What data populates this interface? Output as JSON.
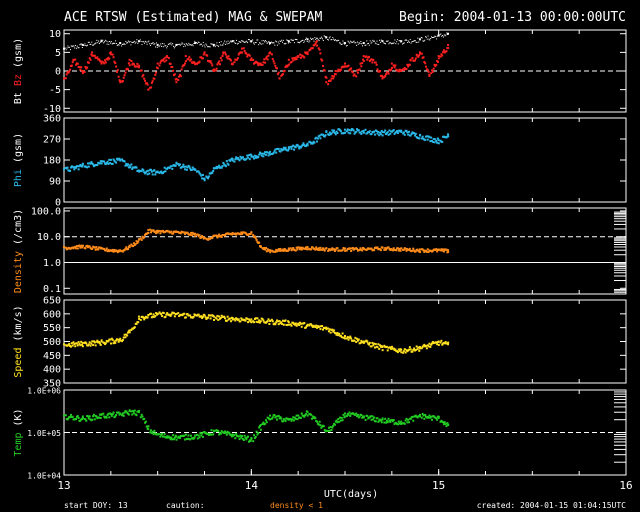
{
  "header": {
    "title": "ACE RTSW (Estimated) MAG & SWEPAM",
    "begin": "Begin: 2004-01-13 00:00:00UTC"
  },
  "footer": {
    "start_doy_label": "start DOY:",
    "start_doy_value": "13",
    "caution_label": "caution:",
    "caution_value": "density < 1",
    "created": "created: 2004-01-15 01:04:15UTC"
  },
  "colors": {
    "background": "#000000",
    "axes": "#ffffff",
    "bt": "#ffffff",
    "bz": "#ff2020",
    "phi": "#2ab8e8",
    "density": "#ff8c1a",
    "speed": "#ffe020",
    "temp": "#22cc22"
  },
  "chart_data": {
    "type": "scatter",
    "xaxis": {
      "label": "UTC(days)",
      "range": [
        13,
        16
      ],
      "ticks": [
        13,
        14,
        15,
        16
      ]
    },
    "panels": [
      {
        "id": "mag",
        "ylabel_parts": [
          {
            "text": "Bt",
            "color": "#ffffff"
          },
          {
            "text": "Bz",
            "color": "#ff2020"
          },
          {
            "text": "(gsm)",
            "color": "#ffffff"
          }
        ],
        "ylim": [
          -11,
          11
        ],
        "ticks": [
          10,
          5,
          0,
          -5,
          -10
        ],
        "log": false,
        "dashed": [
          0
        ],
        "series": [
          {
            "name": "Bt",
            "color": "#ffffff",
            "size": 1,
            "x": [
              13.0,
              13.1,
              13.2,
              13.3,
              13.4,
              13.5,
              13.6,
              13.7,
              13.8,
              13.9,
              14.0,
              14.1,
              14.2,
              14.3,
              14.4,
              14.5,
              14.6,
              14.7,
              14.8,
              14.9,
              15.0,
              15.05
            ],
            "y": [
              6,
              7,
              8,
              7.5,
              8,
              7,
              7,
              7.5,
              7,
              8,
              8,
              7.5,
              8,
              8.5,
              9,
              7.5,
              7.5,
              8,
              8,
              8.5,
              9.5,
              10
            ]
          },
          {
            "name": "Bz",
            "color": "#ff2020",
            "size": 2,
            "x": [
              13.0,
              13.05,
              13.1,
              13.15,
              13.2,
              13.25,
              13.3,
              13.35,
              13.4,
              13.45,
              13.5,
              13.55,
              13.6,
              13.65,
              13.7,
              13.75,
              13.8,
              13.85,
              13.9,
              13.95,
              14.0,
              14.05,
              14.1,
              14.15,
              14.2,
              14.25,
              14.3,
              14.35,
              14.4,
              14.45,
              14.5,
              14.55,
              14.6,
              14.65,
              14.7,
              14.75,
              14.8,
              14.85,
              14.9,
              14.95,
              15.0,
              15.05
            ],
            "y": [
              -2,
              3,
              0,
              5,
              2,
              5,
              -3,
              3,
              1,
              -5,
              2,
              4,
              -3,
              4,
              2,
              5,
              0,
              5,
              2,
              6,
              3,
              2,
              5,
              -2,
              3,
              4,
              5,
              8,
              -3,
              0,
              2,
              -1,
              4,
              3,
              -2,
              2,
              0,
              3,
              5,
              -1,
              4,
              7
            ]
          }
        ]
      },
      {
        "id": "phi",
        "ylabel_parts": [
          {
            "text": "Phi",
            "color": "#2ab8e8"
          },
          {
            "text": "(gsm)",
            "color": "#ffffff"
          }
        ],
        "ylim": [
          0,
          360
        ],
        "ticks": [
          360,
          270,
          180,
          90,
          0
        ],
        "log": false,
        "dashed": [],
        "series": [
          {
            "name": "Phi",
            "color": "#2ab8e8",
            "size": 2,
            "x": [
              13.0,
              13.1,
              13.2,
              13.3,
              13.4,
              13.5,
              13.6,
              13.7,
              13.75,
              13.8,
              13.9,
              14.0,
              14.1,
              14.2,
              14.3,
              14.4,
              14.5,
              14.6,
              14.7,
              14.8,
              14.9,
              15.0,
              15.05
            ],
            "y": [
              140,
              160,
              175,
              180,
              135,
              130,
              165,
              140,
              100,
              145,
              185,
              200,
              215,
              235,
              250,
              300,
              310,
              305,
              300,
              305,
              285,
              265,
              290
            ]
          }
        ]
      },
      {
        "id": "density",
        "ylabel_parts": [
          {
            "text": "Density",
            "color": "#ff8c1a"
          },
          {
            "text": "(/cm3)",
            "color": "#ffffff"
          }
        ],
        "ylim": [
          0.06,
          130
        ],
        "ticks": [
          100.0,
          10.0,
          1.0,
          0.1
        ],
        "tick_labels": [
          "100.0",
          "10.0",
          "1.0",
          "0.1"
        ],
        "log": true,
        "dashed": [
          10
        ],
        "solid": [
          1
        ],
        "series": [
          {
            "name": "Density",
            "color": "#ff8c1a",
            "size": 2,
            "x": [
              13.0,
              13.1,
              13.2,
              13.3,
              13.35,
              13.4,
              13.45,
              13.5,
              13.6,
              13.7,
              13.75,
              13.8,
              13.9,
              14.0,
              14.05,
              14.1,
              14.2,
              14.3,
              14.4,
              14.5,
              14.6,
              14.7,
              14.8,
              14.9,
              15.0,
              15.05
            ],
            "y": [
              4,
              4.5,
              3.5,
              3,
              4.5,
              8,
              18,
              17,
              16,
              13,
              9,
              11,
              14,
              15,
              4,
              3,
              3.5,
              4,
              3.5,
              3.5,
              3.5,
              3.8,
              3.5,
              3.2,
              3.2,
              3
            ]
          }
        ]
      },
      {
        "id": "speed",
        "ylabel_parts": [
          {
            "text": "Speed",
            "color": "#ffe020"
          },
          {
            "text": "(km/s)",
            "color": "#ffffff"
          }
        ],
        "ylim": [
          350,
          650
        ],
        "ticks": [
          650,
          600,
          550,
          500,
          450,
          400,
          350
        ],
        "log": false,
        "dashed": [],
        "series": [
          {
            "name": "Speed",
            "color": "#ffe020",
            "size": 2,
            "x": [
              13.0,
              13.1,
              13.2,
              13.3,
              13.35,
              13.4,
              13.45,
              13.5,
              13.6,
              13.7,
              13.8,
              13.9,
              14.0,
              14.1,
              14.2,
              14.3,
              14.4,
              14.5,
              14.6,
              14.7,
              14.8,
              14.9,
              15.0,
              15.05
            ],
            "y": [
              490,
              495,
              500,
              510,
              540,
              590,
              595,
              600,
              600,
              595,
              590,
              585,
              580,
              575,
              570,
              560,
              550,
              520,
              500,
              480,
              470,
              480,
              500,
              490
            ]
          }
        ]
      },
      {
        "id": "temp",
        "ylabel_parts": [
          {
            "text": "Temp",
            "color": "#22cc22"
          },
          {
            "text": "(K)",
            "color": "#ffffff"
          }
        ],
        "ylim": [
          10000,
          1000000
        ],
        "ticks": [
          1000000,
          100000,
          10000
        ],
        "tick_labels": [
          "1.0E+06",
          "1.0E+05",
          "1.0E+04"
        ],
        "log": true,
        "dashed": [
          100000
        ],
        "series": [
          {
            "name": "Temp",
            "color": "#22cc22",
            "size": 2,
            "x": [
              13.0,
              13.1,
              13.2,
              13.3,
              13.35,
              13.4,
              13.45,
              13.5,
              13.6,
              13.7,
              13.8,
              13.9,
              14.0,
              14.05,
              14.1,
              14.2,
              14.3,
              14.4,
              14.5,
              14.6,
              14.7,
              14.8,
              14.9,
              15.0,
              15.05
            ],
            "y": [
              250000,
              220000,
              260000,
              280000,
              320000,
              300000,
              120000,
              90000,
              80000,
              85000,
              110000,
              90000,
              70000,
              150000,
              250000,
              200000,
              300000,
              110000,
              280000,
              240000,
              200000,
              180000,
              260000,
              220000,
              150000
            ]
          }
        ]
      }
    ]
  }
}
